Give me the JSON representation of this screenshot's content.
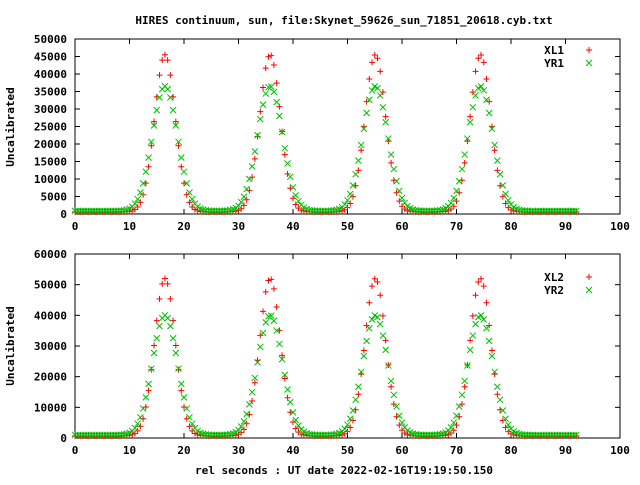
{
  "title": "HIRES continuum, sun, file:Skynet_59626_sun_71851_20618.cyb.txt",
  "xlabel": "rel seconds : UT date 2022-02-16T19:19:50.150",
  "colors": {
    "series_a": "#ff0000",
    "series_b": "#00c000",
    "axes": "#000000",
    "background": "#ffffff"
  },
  "chart_data": [
    {
      "type": "scatter",
      "ylabel": "Uncalibrated",
      "xlim": [
        0,
        100
      ],
      "ylim": [
        0,
        50000
      ],
      "xticks": [
        0,
        10,
        20,
        30,
        40,
        50,
        60,
        70,
        80,
        90,
        100
      ],
      "yticks": [
        0,
        5000,
        10000,
        15000,
        20000,
        25000,
        30000,
        35000,
        40000,
        45000,
        50000
      ],
      "grid": false,
      "legend_position": "top-right",
      "peak_centers": [
        16.5,
        35.8,
        55.1,
        74.4
      ],
      "x_range_sampled": [
        0,
        92
      ],
      "series": [
        {
          "name": "XL1",
          "marker": "+",
          "baseline": 600,
          "peak": 45500,
          "half_width": 1.9
        },
        {
          "name": "YR1",
          "marker": "x",
          "baseline": 900,
          "peak": 36500,
          "half_width": 2.3
        }
      ]
    },
    {
      "type": "scatter",
      "ylabel": "Uncalibrated",
      "xlim": [
        0,
        100
      ],
      "ylim": [
        0,
        60000
      ],
      "xticks": [
        0,
        10,
        20,
        30,
        40,
        50,
        60,
        70,
        80,
        90,
        100
      ],
      "yticks": [
        0,
        10000,
        20000,
        30000,
        40000,
        50000,
        60000
      ],
      "grid": false,
      "legend_position": "top-right",
      "peak_centers": [
        16.5,
        35.8,
        55.1,
        74.4
      ],
      "x_range_sampled": [
        0,
        92
      ],
      "series": [
        {
          "name": "XL2",
          "marker": "+",
          "baseline": 700,
          "peak": 52000,
          "half_width": 1.9
        },
        {
          "name": "YR2",
          "marker": "x",
          "baseline": 1000,
          "peak": 40000,
          "half_width": 2.3
        }
      ]
    }
  ]
}
